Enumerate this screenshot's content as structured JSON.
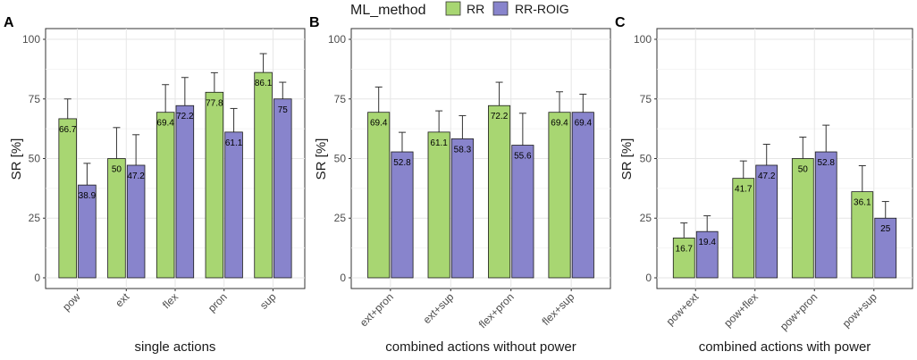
{
  "legend": {
    "title": "ML_method",
    "items": [
      {
        "name": "RR",
        "color": "#a8d672"
      },
      {
        "name": "RR-ROIG",
        "color": "#8884cc"
      }
    ]
  },
  "chart_data": [
    {
      "type": "bar",
      "panel": "A",
      "xlabel": "single actions",
      "ylabel": "SR [%]",
      "ylim": [
        0,
        100
      ],
      "yticks": [
        "0",
        "25",
        "50",
        "75",
        "100"
      ],
      "categories": [
        "pow",
        "ext",
        "flex",
        "pron",
        "sup"
      ],
      "series": [
        {
          "name": "RR",
          "values": [
            66.7,
            50,
            69.4,
            77.8,
            86.1
          ],
          "labels": [
            "66.7",
            "50",
            "69.4",
            "77.8",
            "86.1"
          ],
          "error_upper": [
            75,
            63,
            81,
            86,
            94
          ]
        },
        {
          "name": "RR-ROIG",
          "values": [
            38.9,
            47.2,
            72.2,
            61.1,
            75
          ],
          "labels": [
            "38.9",
            "47.2",
            "72.2",
            "61.1",
            "75"
          ],
          "error_upper": [
            48,
            60,
            84,
            71,
            82
          ]
        }
      ]
    },
    {
      "type": "bar",
      "panel": "B",
      "xlabel": "combined actions without power",
      "ylabel": "SR [%]",
      "ylim": [
        0,
        100
      ],
      "yticks": [
        "0",
        "25",
        "50",
        "75",
        "100"
      ],
      "categories": [
        "ext+pron",
        "ext+sup",
        "flex+pron",
        "flex+sup"
      ],
      "series": [
        {
          "name": "RR",
          "values": [
            69.4,
            61.1,
            72.2,
            69.4
          ],
          "labels": [
            "69.4",
            "61.1",
            "72.2",
            "69.4"
          ],
          "error_upper": [
            80,
            70,
            82,
            78
          ]
        },
        {
          "name": "RR-ROIG",
          "values": [
            52.8,
            58.3,
            55.6,
            69.4
          ],
          "labels": [
            "52.8",
            "58.3",
            "55.6",
            "69.4"
          ],
          "error_upper": [
            61,
            68,
            69,
            77
          ]
        }
      ]
    },
    {
      "type": "bar",
      "panel": "C",
      "xlabel": "combined actions with power",
      "ylabel": "SR [%]",
      "ylim": [
        0,
        100
      ],
      "yticks": [
        "0",
        "25",
        "50",
        "75",
        "100"
      ],
      "categories": [
        "pow+ext",
        "pow+flex",
        "pow+pron",
        "pow+sup"
      ],
      "series": [
        {
          "name": "RR",
          "values": [
            16.7,
            41.7,
            50,
            36.1
          ],
          "labels": [
            "16.7",
            "41.7",
            "50",
            "36.1"
          ],
          "error_upper": [
            23,
            49,
            59,
            47
          ]
        },
        {
          "name": "RR-ROIG",
          "values": [
            19.4,
            47.2,
            52.8,
            25
          ],
          "labels": [
            "19.4",
            "47.2",
            "52.8",
            "25"
          ],
          "error_upper": [
            26,
            56,
            64,
            32
          ]
        }
      ]
    }
  ]
}
